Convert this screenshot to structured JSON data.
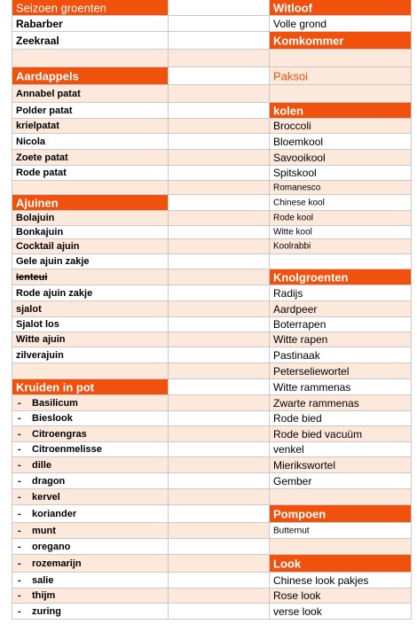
{
  "left": {
    "seizoen": {
      "header": "Seizoen groenten",
      "items": [
        "Rabarber",
        "Zeekraal"
      ]
    },
    "aardappels": {
      "header": "Aardappels",
      "items": [
        "Annabel patat",
        "Polder patat",
        "krielpatat",
        "Nicola",
        "Zoete patat",
        "Rode patat"
      ]
    },
    "ajuinen": {
      "header": "Ajuinen",
      "items": [
        "Bolajuin",
        "Bonkajuin",
        "Cocktail ajuin",
        "Gele ajuin zakje",
        "Ienteui",
        "Rode ajuin zakje",
        "sjalot",
        "Sjalot los",
        "Witte ajuin",
        "zilverajuin"
      ]
    },
    "kruiden": {
      "header": "Kruiden in pot",
      "bullet": "-",
      "items": [
        "Basilicum",
        "Bieslook",
        "Citroengras",
        "Citroenmelisse",
        "dille",
        "dragon",
        "kervel",
        "koriander",
        "munt",
        "oregano",
        "rozemarijn",
        "salie",
        "thijm",
        "zuring"
      ]
    }
  },
  "right": {
    "witloof": {
      "header": "Witloof",
      "items": [
        "Volle grond"
      ]
    },
    "komkommer": {
      "header": "Komkommer"
    },
    "paksoi": {
      "header": "Paksoi"
    },
    "kolen": {
      "header": "kolen",
      "items": [
        "Broccoli",
        "Bloemkool",
        "Savooikool",
        "Spitskool",
        "Romanesco",
        "Chinese kool",
        "Rode kool",
        "Witte kool",
        "Koolrabbi"
      ]
    },
    "knol": {
      "header": "Knolgroenten",
      "items": [
        "Radijs",
        "Aardpeer",
        "Boterrapen",
        "Witte rapen",
        "Pastinaak",
        "Peterseliewortel",
        "Witte rammenas",
        "Zwarte rammenas",
        "Rode bied",
        "Rode bied vacuüm",
        "venkel",
        "Mierikswortel",
        "Gember"
      ]
    },
    "pompoen": {
      "header": "Pompoen",
      "items": [
        "Butternut"
      ]
    },
    "look": {
      "header": "Look",
      "items": [
        "Chinese look pakjes",
        "Rose look",
        "verse look"
      ]
    }
  },
  "colors": {
    "header_orange": "#f0520d",
    "row_peach": "#fde9db",
    "row_white": "#ffffff",
    "grid": "#c9c9c9"
  }
}
